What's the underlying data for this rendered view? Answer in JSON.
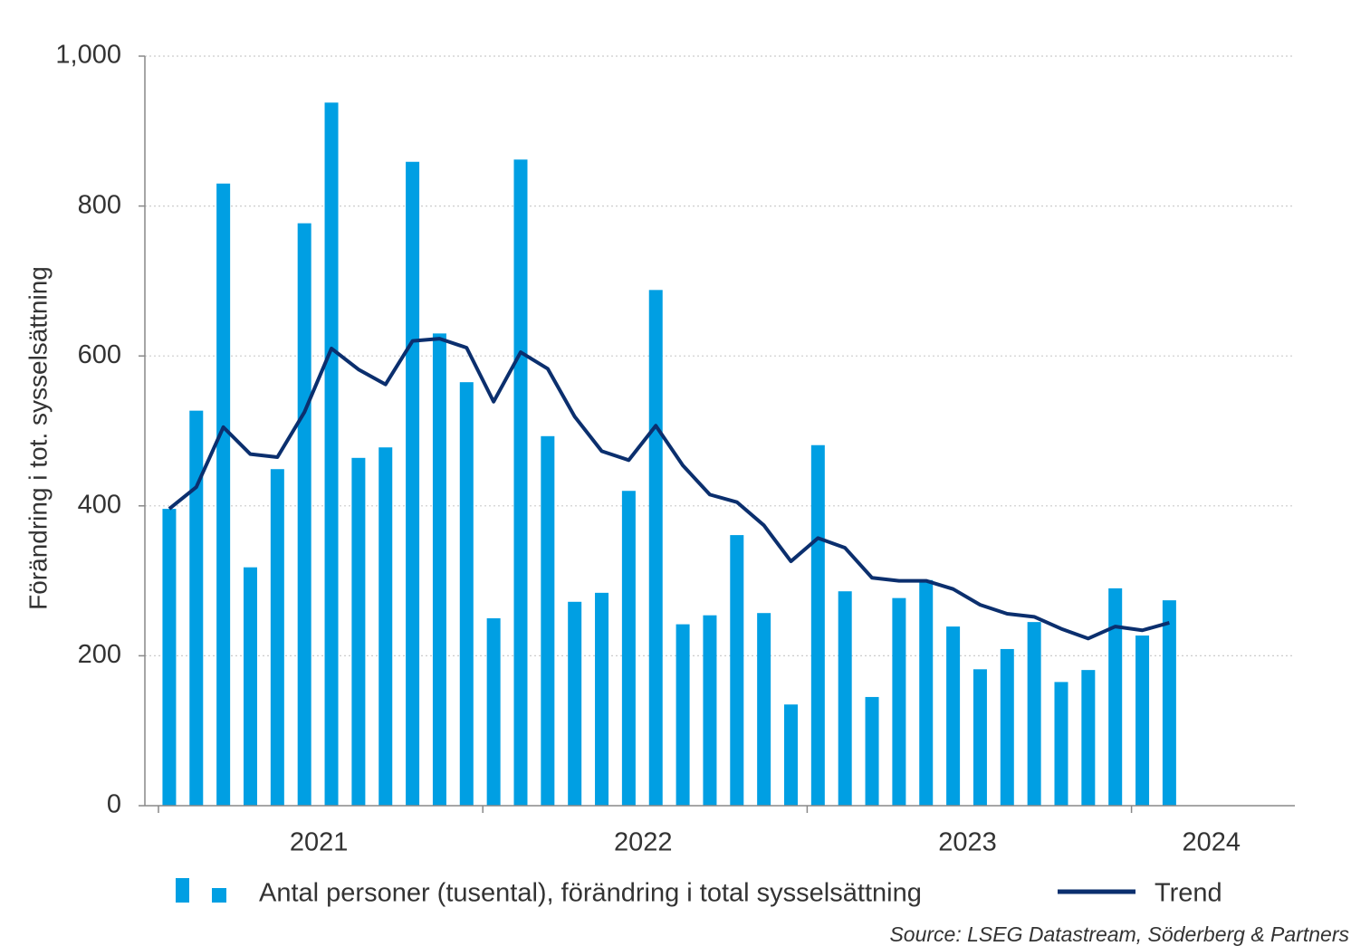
{
  "chart_data": {
    "type": "bar",
    "y_label": "Förändring i tot. sysselsättning",
    "categories": [
      null,
      null,
      null,
      null,
      null,
      null,
      null,
      null,
      null,
      null,
      null,
      null,
      null,
      null,
      null,
      null,
      null,
      null,
      null,
      null,
      null,
      null,
      null,
      null,
      null,
      null,
      null,
      null,
      null,
      null,
      null,
      null,
      null,
      null,
      null,
      null,
      null,
      null
    ],
    "x_labels": [
      "2021",
      "2022",
      "2023",
      "2024"
    ],
    "series": [
      {
        "name": "Antal personer (tusental), förändring i total sysselsättning",
        "type": "bar",
        "color": "#009fe3",
        "values": [
          396,
          527,
          830,
          318,
          449,
          777,
          938,
          464,
          478,
          859,
          630,
          565,
          250,
          862,
          493,
          272,
          284,
          420,
          688,
          242,
          254,
          361,
          257,
          135,
          481,
          286,
          145,
          277,
          301,
          239,
          182,
          209,
          245,
          165,
          181,
          290,
          227,
          274
        ]
      },
      {
        "name": "Trend",
        "type": "line",
        "color": "#0b2f6e",
        "values": [
          396,
          425,
          505,
          469,
          465,
          525,
          610,
          582,
          562,
          620,
          623,
          611,
          539,
          605,
          583,
          519,
          473,
          461,
          507,
          454,
          415,
          405,
          374,
          326,
          357,
          344,
          304,
          300,
          300,
          289,
          268,
          256,
          252,
          236,
          223,
          239,
          234,
          244
        ]
      }
    ],
    "ylim": [
      0,
      1000
    ],
    "yticks": [
      0,
      200,
      400,
      600,
      800,
      {
        "value": 1000,
        "label": "1,000"
      }
    ],
    "grid": true,
    "source": "Source: LSEG Datastream, Söderberg & Partners"
  }
}
